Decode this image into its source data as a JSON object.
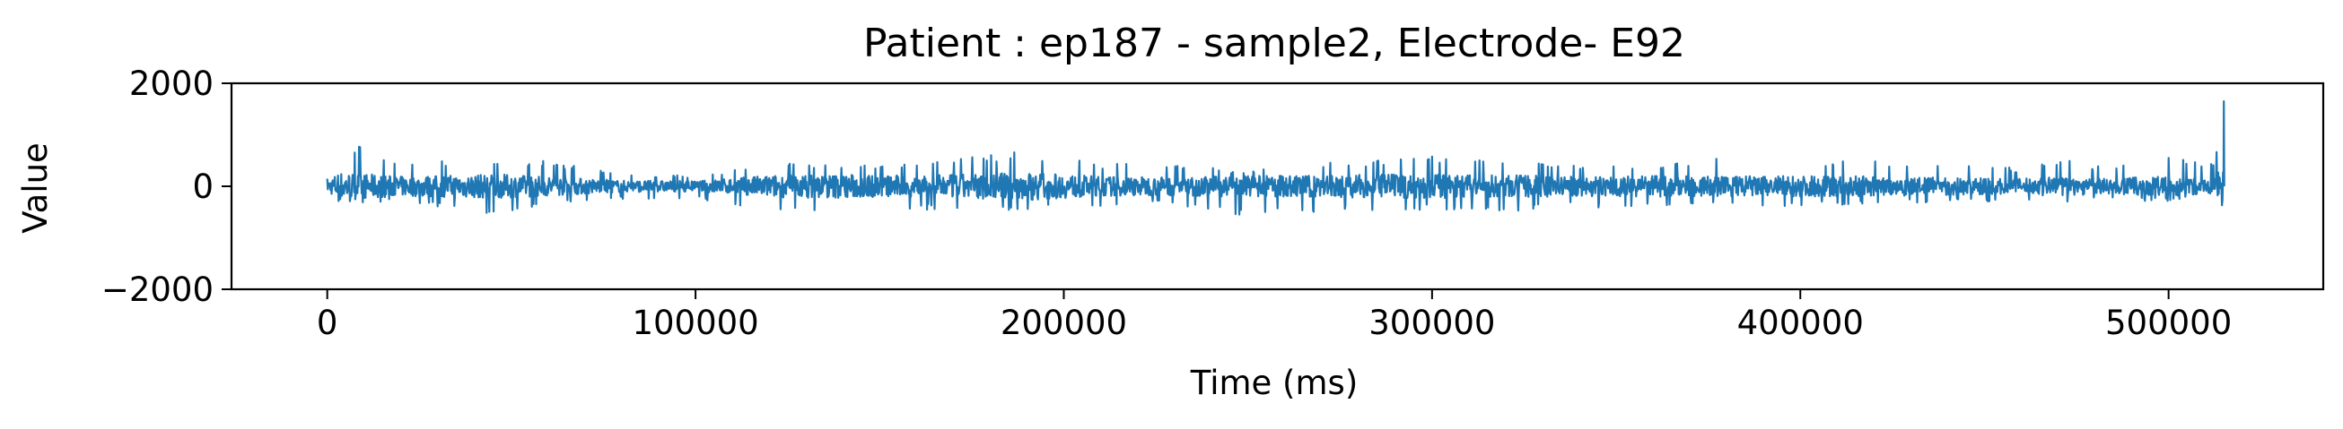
{
  "chart_data": {
    "type": "line",
    "title": "Patient : ep187 - sample2, Electrode- E92",
    "xlabel": "Time (ms)",
    "ylabel": "Value",
    "xlim": [
      -26000,
      542000
    ],
    "ylim": [
      -2000,
      2000
    ],
    "x_ticks": [
      0,
      100000,
      200000,
      300000,
      400000,
      500000
    ],
    "x_tick_labels": [
      "0",
      "100000",
      "200000",
      "300000",
      "400000",
      "500000"
    ],
    "y_ticks": [
      2000,
      0,
      -2000
    ],
    "y_tick_labels": [
      "2000",
      "0",
      "−2000"
    ],
    "grid": false,
    "legend": "none",
    "series": [
      {
        "color": "#1f77b4",
        "x_range": [
          0,
          515000
        ],
        "envelope": {
          "x": [
            0,
            3000,
            20000,
            45000,
            60000,
            80000,
            100000,
            120000,
            140000,
            160000,
            190000,
            210000,
            230000,
            250000,
            270000,
            300000,
            320000,
            340000,
            360000,
            380000,
            400000,
            420000,
            440000,
            460000,
            470000,
            480000,
            500000,
            512000,
            515000
          ],
          "upper": [
            150,
            900,
            550,
            450,
            500,
            250,
            200,
            450,
            450,
            450,
            700,
            450,
            450,
            300,
            450,
            600,
            450,
            450,
            450,
            550,
            500,
            500,
            450,
            350,
            550,
            400,
            550,
            450,
            1650
          ],
          "lower": [
            -250,
            -350,
            -300,
            -600,
            -350,
            -250,
            -250,
            -500,
            -600,
            -450,
            -500,
            -400,
            -350,
            -600,
            -500,
            -450,
            -500,
            -400,
            -450,
            -350,
            -400,
            -350,
            -300,
            -300,
            -350,
            -250,
            -300,
            -200,
            -200
          ]
        }
      }
    ]
  }
}
